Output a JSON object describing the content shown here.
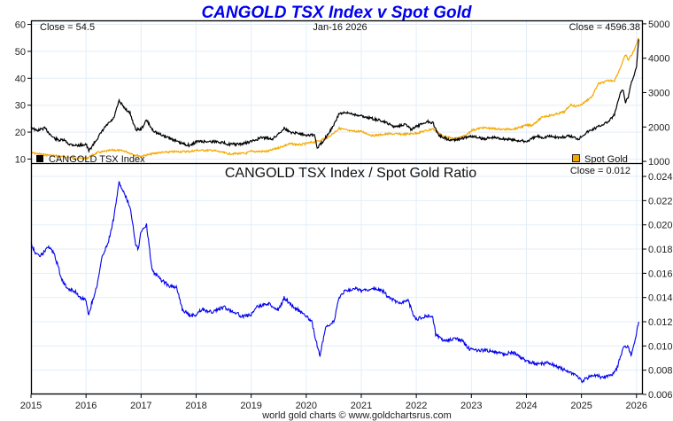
{
  "chart_data": [
    {
      "type": "line",
      "title": "CANGOLD TSX Index v Spot Gold",
      "date_label": "Jan-16  2026",
      "left_close_label": "Close = 54.5",
      "right_close_label": "Close = 4596.38",
      "left_axis": {
        "ticks": [
          10,
          20,
          30,
          40,
          50,
          60
        ],
        "range": [
          8.5,
          61.5
        ]
      },
      "right_axis": {
        "ticks": [
          1000,
          2000,
          3000,
          4000,
          5000
        ],
        "range": [
          950,
          5100
        ]
      },
      "x_range": [
        2015.0,
        2026.1
      ],
      "series": [
        {
          "name": "CANGOLD TSX Index",
          "axis": "left",
          "color": "#000000",
          "x": [
            2015.0,
            2015.1,
            2015.25,
            2015.4,
            2015.5,
            2015.6,
            2015.7,
            2015.85,
            2016.0,
            2016.05,
            2016.2,
            2016.35,
            2016.5,
            2016.6,
            2016.7,
            2016.8,
            2016.9,
            2017.0,
            2017.1,
            2017.2,
            2017.3,
            2017.5,
            2017.7,
            2017.9,
            2018.0,
            2018.2,
            2018.4,
            2018.6,
            2018.8,
            2019.0,
            2019.2,
            2019.4,
            2019.5,
            2019.6,
            2019.7,
            2019.9,
            2020.0,
            2020.15,
            2020.2,
            2020.3,
            2020.5,
            2020.6,
            2020.8,
            2021.0,
            2021.2,
            2021.4,
            2021.6,
            2021.8,
            2021.9,
            2022.0,
            2022.2,
            2022.3,
            2022.4,
            2022.6,
            2022.8,
            2023.0,
            2023.2,
            2023.4,
            2023.6,
            2023.8,
            2024.0,
            2024.2,
            2024.3,
            2024.4,
            2024.6,
            2024.8,
            2024.95,
            2025.0,
            2025.1,
            2025.3,
            2025.5,
            2025.6,
            2025.7,
            2025.75,
            2025.8,
            2025.85,
            2025.9,
            2026.0,
            2026.04
          ],
          "y": [
            22,
            20.5,
            21.5,
            18,
            17,
            17,
            15.5,
            15,
            15.5,
            13,
            17.5,
            22,
            25,
            31.5,
            29,
            27,
            21,
            21,
            24.5,
            21,
            19.5,
            18,
            16,
            15,
            16.5,
            16.5,
            16.5,
            15.5,
            15.5,
            16.5,
            18,
            17.5,
            19.5,
            21.5,
            20,
            19.5,
            19,
            19,
            14,
            16.5,
            22.5,
            27,
            27,
            26,
            25,
            24,
            22,
            23,
            21,
            22,
            24,
            23.5,
            19,
            17,
            17.5,
            18.5,
            17.5,
            18,
            17.5,
            17,
            16.5,
            18.5,
            18,
            18.5,
            18,
            18.5,
            17.5,
            18.5,
            20,
            22,
            24,
            26.5,
            34,
            36,
            31,
            33,
            38,
            44,
            54.5
          ]
        },
        {
          "name": "Spot Gold",
          "axis": "right",
          "color": "#f5a800",
          "x": [
            2015.0,
            2015.2,
            2015.5,
            2015.8,
            2016.0,
            2016.2,
            2016.5,
            2016.7,
            2016.9,
            2017.0,
            2017.3,
            2017.6,
            2017.9,
            2018.0,
            2018.3,
            2018.6,
            2018.9,
            2019.0,
            2019.3,
            2019.5,
            2019.7,
            2019.9,
            2020.0,
            2020.2,
            2020.4,
            2020.6,
            2020.8,
            2021.0,
            2021.2,
            2021.5,
            2021.8,
            2022.0,
            2022.2,
            2022.3,
            2022.5,
            2022.7,
            2022.9,
            2023.0,
            2023.2,
            2023.4,
            2023.6,
            2023.8,
            2024.0,
            2024.1,
            2024.3,
            2024.5,
            2024.7,
            2024.8,
            2024.9,
            2025.0,
            2025.2,
            2025.3,
            2025.5,
            2025.6,
            2025.7,
            2025.8,
            2025.85,
            2025.95,
            2026.04
          ],
          "y": [
            1250,
            1200,
            1150,
            1100,
            1080,
            1250,
            1330,
            1300,
            1180,
            1150,
            1250,
            1280,
            1290,
            1320,
            1320,
            1220,
            1230,
            1290,
            1290,
            1400,
            1510,
            1480,
            1520,
            1580,
            1700,
            1960,
            1880,
            1870,
            1750,
            1800,
            1790,
            1820,
            1900,
            1950,
            1720,
            1650,
            1750,
            1900,
            1980,
            1950,
            1930,
            1950,
            2050,
            2050,
            2300,
            2350,
            2450,
            2650,
            2600,
            2650,
            2900,
            3250,
            3350,
            3350,
            3700,
            4100,
            3950,
            4200,
            4596
          ]
        }
      ],
      "legend": [
        {
          "label": "CANGOLD TSX Index",
          "color": "#000000",
          "placement": "bottom-left"
        },
        {
          "label": "Spot Gold",
          "color": "#f5a800",
          "placement": "bottom-right"
        }
      ]
    },
    {
      "type": "line",
      "title": "CANGOLD TSX Index  /  Spot Gold Ratio",
      "close_label": "Close = 0.012",
      "right_axis": {
        "ticks": [
          0.006,
          0.008,
          0.01,
          0.012,
          0.014,
          0.016,
          0.018,
          0.02,
          0.022,
          0.024
        ],
        "range": [
          0.006,
          0.0251
        ]
      },
      "x_ticks": [
        "2015",
        "2016",
        "2017",
        "2018",
        "2019",
        "2020",
        "2021",
        "2022",
        "2023",
        "2024",
        "2025",
        "2026"
      ],
      "x_range": [
        2015.0,
        2026.1
      ],
      "series": [
        {
          "name": "CANGOLD TSX Index / Spot Gold Ratio",
          "color": "#0000ee",
          "x": [
            2015.0,
            2015.05,
            2015.1,
            2015.2,
            2015.3,
            2015.4,
            2015.5,
            2015.55,
            2015.65,
            2015.8,
            2015.9,
            2016.0,
            2016.05,
            2016.1,
            2016.2,
            2016.3,
            2016.4,
            2016.5,
            2016.6,
            2016.65,
            2016.75,
            2016.8,
            2016.9,
            2016.95,
            2017.0,
            2017.1,
            2017.2,
            2017.25,
            2017.35,
            2017.5,
            2017.65,
            2017.75,
            2017.9,
            2018.0,
            2018.1,
            2018.3,
            2018.5,
            2018.7,
            2018.85,
            2019.0,
            2019.1,
            2019.3,
            2019.5,
            2019.6,
            2019.7,
            2019.9,
            2020.0,
            2020.1,
            2020.2,
            2020.25,
            2020.35,
            2020.5,
            2020.6,
            2020.7,
            2020.9,
            2021.0,
            2021.2,
            2021.4,
            2021.5,
            2021.7,
            2021.85,
            2021.95,
            2022.0,
            2022.2,
            2022.3,
            2022.35,
            2022.5,
            2022.7,
            2022.85,
            2022.95,
            2023.2,
            2023.4,
            2023.6,
            2023.75,
            2023.9,
            2024.0,
            2024.2,
            2024.4,
            2024.6,
            2024.8,
            2024.9,
            2025.0,
            2025.2,
            2025.4,
            2025.55,
            2025.65,
            2025.75,
            2025.85,
            2025.9,
            2026.0,
            2026.04
          ],
          "y": [
            0.0185,
            0.018,
            0.0175,
            0.0175,
            0.0182,
            0.0178,
            0.0165,
            0.0155,
            0.0148,
            0.0145,
            0.014,
            0.0138,
            0.0125,
            0.0135,
            0.015,
            0.0175,
            0.0185,
            0.0205,
            0.0235,
            0.023,
            0.022,
            0.0215,
            0.0185,
            0.018,
            0.0195,
            0.02,
            0.0162,
            0.016,
            0.0155,
            0.015,
            0.0148,
            0.013,
            0.0125,
            0.0126,
            0.013,
            0.0128,
            0.0132,
            0.0128,
            0.0124,
            0.0126,
            0.0132,
            0.0135,
            0.013,
            0.014,
            0.0135,
            0.0128,
            0.0125,
            0.012,
            0.01,
            0.0092,
            0.0115,
            0.012,
            0.014,
            0.0145,
            0.0148,
            0.0145,
            0.0148,
            0.0145,
            0.014,
            0.0135,
            0.0138,
            0.0125,
            0.0122,
            0.0125,
            0.0124,
            0.011,
            0.0104,
            0.0106,
            0.0104,
            0.0098,
            0.0096,
            0.0096,
            0.0093,
            0.0095,
            0.009,
            0.0088,
            0.0085,
            0.0086,
            0.0082,
            0.0078,
            0.0076,
            0.0071,
            0.0076,
            0.0074,
            0.0076,
            0.0082,
            0.0098,
            0.01,
            0.0092,
            0.011,
            0.012
          ]
        }
      ]
    }
  ],
  "footer": "world gold charts © www.goldchartsrus.com"
}
